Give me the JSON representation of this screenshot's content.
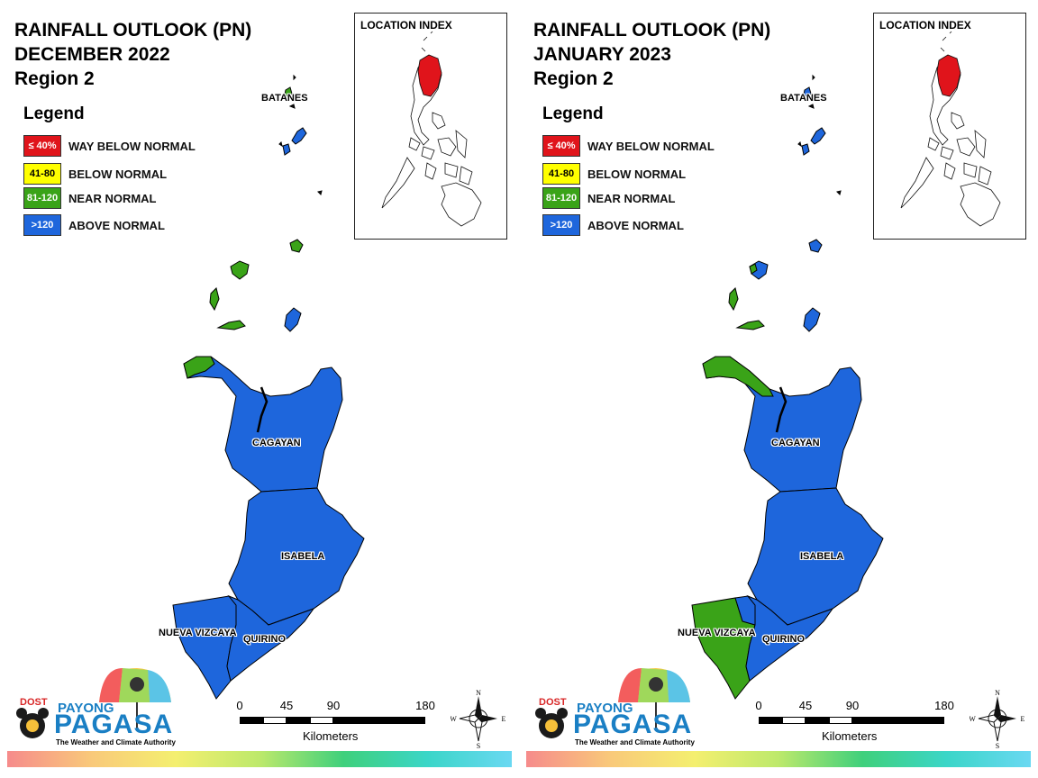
{
  "panels": [
    {
      "title_lines": [
        "RAINFALL OUTLOOK (PN)",
        "DECEMBER 2022",
        "Region 2"
      ],
      "inset_title": "LOCATION INDEX",
      "provinces": {
        "batanes": {
          "label": "BATANES",
          "category": "above_normal"
        },
        "cagayan": {
          "label": "CAGAYAN",
          "category": "above_normal"
        },
        "isabela": {
          "label": "ISABELA",
          "category": "above_normal"
        },
        "nueva_vizcaya": {
          "label": "NUEVA VIZCAYA",
          "category": "above_normal"
        },
        "quirino": {
          "label": "QUIRINO",
          "category": "above_normal"
        }
      }
    },
    {
      "title_lines": [
        "RAINFALL OUTLOOK (PN)",
        "JANUARY 2023",
        "Region 2"
      ],
      "inset_title": "LOCATION INDEX",
      "provinces": {
        "batanes": {
          "label": "BATANES",
          "category": "above_normal"
        },
        "cagayan": {
          "label": "CAGAYAN",
          "category": "above_normal"
        },
        "isabela": {
          "label": "ISABELA",
          "category": "above_normal"
        },
        "nueva_vizcaya": {
          "label": "NUEVA VIZCAYA",
          "category": "near_normal"
        },
        "quirino": {
          "label": "QUIRINO",
          "category": "above_normal"
        }
      }
    }
  ],
  "legend": {
    "title": "Legend",
    "items": [
      {
        "key": "way_below_normal",
        "swatch": "≤ 40%",
        "label": "WAY BELOW NORMAL",
        "color": "#e0141b",
        "text_color": "#ffffff"
      },
      {
        "key": "below_normal",
        "swatch": "41-80",
        "label": "BELOW NORMAL",
        "color": "#ffff00",
        "text_color": "#000000"
      },
      {
        "key": "near_normal",
        "swatch": "81-120",
        "label": "NEAR NORMAL",
        "color": "#3aa318",
        "text_color": "#ffffff"
      },
      {
        "key": "above_normal",
        "swatch": ">120",
        "label": "ABOVE NORMAL",
        "color": "#1e66dc",
        "text_color": "#ffffff"
      }
    ]
  },
  "scale_bar": {
    "ticks": [
      "0",
      "45",
      "90",
      "180"
    ],
    "unit": "Kilometers"
  },
  "compass": {
    "n": "N",
    "s": "S",
    "e": "E",
    "w": "W"
  },
  "logo": {
    "dost": "DOST",
    "payong": "PAYONG",
    "pagasa": "PAGASA",
    "tagline": "The Weather and Climate Authority"
  },
  "colors": {
    "inset_highlight": "#e0141b",
    "outline": "#000000",
    "footer_gradient": [
      "#f68b8b",
      "#f9c97a",
      "#f4ef6f",
      "#bde96b",
      "#3fd07c",
      "#3bd6c8",
      "#6ad8f2"
    ]
  }
}
